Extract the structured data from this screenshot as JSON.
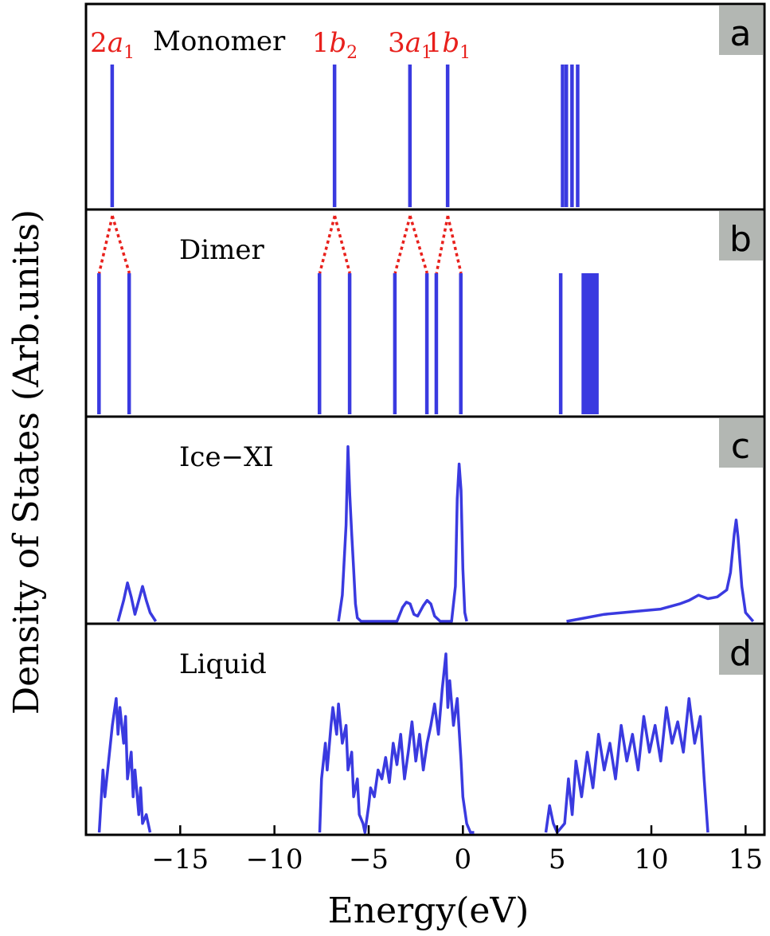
{
  "figure": {
    "ylabel": "Density of States (Arb.units)",
    "xlabel": "Energy(eV)",
    "xticks": [
      -15,
      -10,
      -5,
      0,
      5,
      10,
      15
    ],
    "xlim": [
      -20,
      16
    ],
    "tick_labels": [
      "−15",
      "−10",
      "−5",
      "0",
      "5",
      "10",
      "15"
    ]
  },
  "colors": {
    "line": "#3a3ae0",
    "annotation": "#e8201c",
    "panel_tag_bg": "#b3b7b3",
    "axis": "#000000"
  },
  "chart_data": [
    {
      "type": "bar",
      "panel": "a",
      "title": "Monomer",
      "levels_eV": [
        -18.6,
        -6.8,
        -2.8,
        -0.8,
        5.3,
        5.5,
        5.8,
        6.1
      ],
      "heights": [
        1.0,
        1.0,
        1.0,
        1.0,
        1.0,
        1.0,
        1.0,
        1.0
      ],
      "orbital_labels": [
        {
          "main": "2",
          "italic": "a",
          "sub": "1",
          "x": -18.6
        },
        {
          "main": "1",
          "italic": "b",
          "sub": "2",
          "x": -6.8
        },
        {
          "main": "3",
          "italic": "a",
          "sub": "1",
          "x": -2.8
        },
        {
          "main": "1",
          "italic": "b",
          "sub": "1",
          "x": -0.8
        }
      ]
    },
    {
      "type": "bar",
      "panel": "b",
      "title": "Dimer",
      "levels_eV": [
        -19.3,
        -17.7,
        -7.6,
        -6.0,
        -3.6,
        -1.9,
        -1.4,
        -0.1,
        5.2,
        6.4,
        6.5,
        6.6,
        6.7,
        6.8,
        6.9,
        7.0,
        7.1
      ],
      "heights": [
        1.0,
        1.0,
        1.0,
        1.0,
        1.0,
        1.0,
        1.0,
        1.0,
        1.0,
        1.0,
        1.0,
        1.0,
        1.0,
        1.0,
        1.0,
        1.0,
        1.0
      ],
      "splitting_lines": [
        {
          "from": -18.6,
          "to": [
            -19.3,
            -17.7
          ]
        },
        {
          "from": -6.8,
          "to": [
            -7.6,
            -6.0
          ]
        },
        {
          "from": -2.8,
          "to": [
            -3.6,
            -1.9
          ]
        },
        {
          "from": -0.8,
          "to": [
            -1.4,
            -0.1
          ]
        }
      ]
    },
    {
      "type": "line",
      "panel": "c",
      "title": "Ice−XI",
      "x": [
        -18.3,
        -18.0,
        -17.8,
        -17.6,
        -17.4,
        -17.2,
        -17.0,
        -16.8,
        -16.6,
        -16.3,
        -6.6,
        -6.4,
        -6.2,
        -6.1,
        -6.0,
        -5.9,
        -5.8,
        -5.7,
        -5.6,
        -5.4,
        -3.5,
        -3.2,
        -3.0,
        -2.8,
        -2.6,
        -2.4,
        -2.1,
        -1.9,
        -1.7,
        -1.5,
        -1.2,
        -1.0,
        -0.6,
        -0.4,
        -0.3,
        -0.2,
        -0.1,
        0.0,
        0.1,
        0.2,
        5.5,
        6.5,
        7.5,
        8.5,
        9.5,
        10.5,
        11.5,
        12.0,
        12.5,
        13.0,
        13.5,
        14.0,
        14.2,
        14.4,
        14.5,
        14.6,
        14.8,
        15.0,
        15.4
      ],
      "values": [
        0.0,
        0.12,
        0.22,
        0.14,
        0.04,
        0.12,
        0.2,
        0.12,
        0.05,
        0.0,
        0.0,
        0.15,
        0.55,
        1.0,
        0.72,
        0.5,
        0.3,
        0.1,
        0.02,
        0.0,
        0.0,
        0.08,
        0.11,
        0.1,
        0.04,
        0.03,
        0.09,
        0.12,
        0.1,
        0.03,
        0.0,
        0.0,
        0.0,
        0.2,
        0.7,
        0.9,
        0.75,
        0.3,
        0.05,
        0.0,
        0.0,
        0.02,
        0.04,
        0.05,
        0.06,
        0.07,
        0.1,
        0.12,
        0.15,
        0.13,
        0.14,
        0.18,
        0.28,
        0.5,
        0.58,
        0.48,
        0.2,
        0.05,
        0.0
      ],
      "ylim": [
        0,
        1.08
      ]
    },
    {
      "type": "line",
      "panel": "d",
      "title": "Liquid",
      "x": [
        -19.3,
        -19.1,
        -19.0,
        -18.8,
        -18.6,
        -18.4,
        -18.3,
        -18.2,
        -18.0,
        -17.9,
        -17.8,
        -17.6,
        -17.5,
        -17.4,
        -17.2,
        -17.1,
        -17.0,
        -16.8,
        -16.6,
        -7.6,
        -7.5,
        -7.3,
        -7.2,
        -7.0,
        -6.9,
        -6.7,
        -6.6,
        -6.4,
        -6.2,
        -6.1,
        -5.9,
        -5.8,
        -5.6,
        -5.5,
        -5.3,
        -5.2,
        -5.0,
        -4.9,
        -4.7,
        -4.5,
        -4.3,
        -4.1,
        -3.9,
        -3.7,
        -3.5,
        -3.3,
        -3.1,
        -2.9,
        -2.7,
        -2.5,
        -2.3,
        -2.1,
        -1.9,
        -1.7,
        -1.5,
        -1.3,
        -1.1,
        -0.9,
        -0.8,
        -0.7,
        -0.5,
        -0.3,
        -0.1,
        0.0,
        0.2,
        0.4,
        0.6,
        4.4,
        4.6,
        4.8,
        5.0,
        5.4,
        5.6,
        5.8,
        6.0,
        6.3,
        6.6,
        6.9,
        7.2,
        7.5,
        7.8,
        8.1,
        8.4,
        8.7,
        9.0,
        9.3,
        9.6,
        9.9,
        10.2,
        10.5,
        10.8,
        11.1,
        11.4,
        11.7,
        12.0,
        12.3,
        12.6,
        12.8,
        13.0
      ],
      "values": [
        0.0,
        0.35,
        0.2,
        0.4,
        0.6,
        0.75,
        0.55,
        0.7,
        0.5,
        0.65,
        0.3,
        0.45,
        0.2,
        0.35,
        0.1,
        0.25,
        0.05,
        0.1,
        0.0,
        0.0,
        0.3,
        0.5,
        0.35,
        0.6,
        0.7,
        0.55,
        0.72,
        0.5,
        0.6,
        0.35,
        0.45,
        0.2,
        0.3,
        0.1,
        0.05,
        0.0,
        0.15,
        0.25,
        0.2,
        0.35,
        0.3,
        0.42,
        0.28,
        0.5,
        0.38,
        0.55,
        0.3,
        0.45,
        0.62,
        0.4,
        0.55,
        0.35,
        0.5,
        0.6,
        0.72,
        0.55,
        0.8,
        1.0,
        0.7,
        0.85,
        0.6,
        0.75,
        0.4,
        0.2,
        0.05,
        0.0,
        0.0,
        0.0,
        0.15,
        0.05,
        0.0,
        0.05,
        0.3,
        0.1,
        0.4,
        0.2,
        0.45,
        0.25,
        0.55,
        0.35,
        0.5,
        0.3,
        0.6,
        0.4,
        0.55,
        0.35,
        0.65,
        0.45,
        0.6,
        0.4,
        0.7,
        0.5,
        0.62,
        0.45,
        0.75,
        0.5,
        0.65,
        0.3,
        0.0
      ],
      "ylim": [
        0,
        1.08
      ]
    }
  ]
}
